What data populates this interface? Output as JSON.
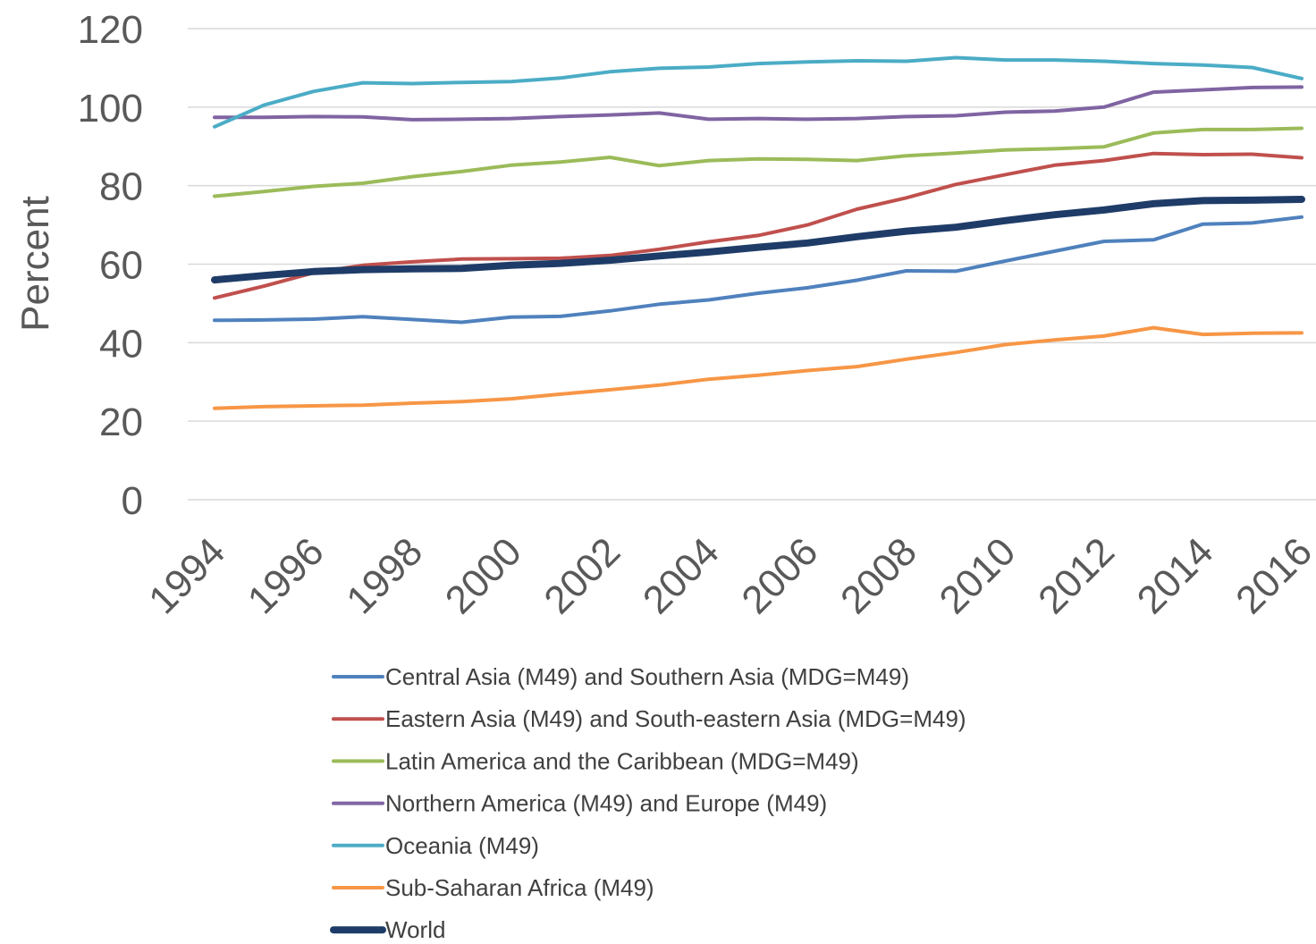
{
  "chart_data": {
    "type": "line",
    "title": "",
    "xlabel": "",
    "ylabel": "Percent",
    "x": [
      1994,
      1995,
      1996,
      1997,
      1998,
      1999,
      2000,
      2001,
      2002,
      2003,
      2004,
      2005,
      2006,
      2007,
      2008,
      2009,
      2010,
      2011,
      2012,
      2013,
      2014,
      2015,
      2016
    ],
    "x_tick_labels": [
      "1994",
      "1996",
      "1998",
      "2000",
      "2002",
      "2004",
      "2006",
      "2008",
      "2010",
      "2012",
      "2014",
      "2016"
    ],
    "y_tick_labels": [
      "0",
      "20",
      "40",
      "60",
      "80",
      "100",
      "120"
    ],
    "ylim": [
      0,
      120
    ],
    "grid": true,
    "legend_position": "bottom",
    "series": [
      {
        "name": "Central Asia (M49) and Southern Asia (MDG=M49)",
        "color": "#4f81bd",
        "width": 4,
        "values": [
          45.7,
          45.8,
          46.0,
          46.6,
          45.9,
          45.2,
          46.5,
          46.7,
          48.1,
          49.8,
          50.9,
          52.6,
          54.0,
          55.9,
          58.3,
          58.2,
          60.8,
          63.3,
          65.8,
          66.2,
          70.2,
          70.5,
          72.0
        ]
      },
      {
        "name": "Eastern Asia (M49) and South-eastern Asia (MDG=M49)",
        "color": "#c0504d",
        "width": 4,
        "values": [
          51.4,
          54.4,
          57.8,
          59.7,
          60.6,
          61.3,
          61.4,
          61.5,
          62.2,
          63.8,
          65.7,
          67.3,
          70.0,
          74.0,
          76.9,
          80.3,
          82.8,
          85.2,
          86.4,
          88.2,
          87.9,
          88.0,
          87.1
        ]
      },
      {
        "name": "Latin America and the Caribbean (MDG=M49)",
        "color": "#9bbb59",
        "width": 4,
        "values": [
          77.3,
          78.5,
          79.8,
          80.6,
          82.3,
          83.6,
          85.2,
          86.0,
          87.2,
          85.1,
          86.4,
          86.8,
          86.7,
          86.4,
          87.6,
          88.3,
          89.1,
          89.4,
          89.9,
          93.4,
          94.3,
          94.3,
          94.6
        ]
      },
      {
        "name": "Northern America (M49) and Europe (M49)",
        "color": "#8064a2",
        "width": 4,
        "values": [
          97.4,
          97.4,
          97.6,
          97.5,
          96.8,
          96.9,
          97.1,
          97.6,
          98.0,
          98.5,
          96.9,
          97.1,
          96.9,
          97.1,
          97.6,
          97.8,
          98.7,
          99.0,
          100.0,
          103.8,
          104.4,
          105.0,
          105.1
        ]
      },
      {
        "name": "Oceania (M49)",
        "color": "#4bacc6",
        "width": 4,
        "values": [
          95.0,
          100.5,
          104.0,
          106.2,
          106.0,
          106.3,
          106.5,
          107.4,
          109.0,
          109.9,
          110.2,
          111.1,
          111.5,
          111.8,
          111.7,
          112.6,
          112.0,
          112.0,
          111.7,
          111.1,
          110.7,
          110.1,
          107.3
        ]
      },
      {
        "name": "Sub-Saharan Africa (M49)",
        "color": "#f79646",
        "width": 4,
        "values": [
          23.3,
          23.7,
          23.9,
          24.1,
          24.6,
          25.0,
          25.7,
          26.9,
          28.0,
          29.2,
          30.7,
          31.7,
          32.9,
          33.9,
          35.8,
          37.5,
          39.5,
          40.7,
          41.7,
          43.8,
          42.1,
          42.4,
          42.5
        ]
      },
      {
        "name": "World",
        "color": "#1f3c68",
        "width": 8,
        "values": [
          56.0,
          57.1,
          58.1,
          58.6,
          58.8,
          58.9,
          59.7,
          60.2,
          61.0,
          62.1,
          63.1,
          64.3,
          65.4,
          67.0,
          68.4,
          69.4,
          71.1,
          72.6,
          73.8,
          75.4,
          76.2,
          76.3,
          76.5
        ]
      }
    ]
  }
}
